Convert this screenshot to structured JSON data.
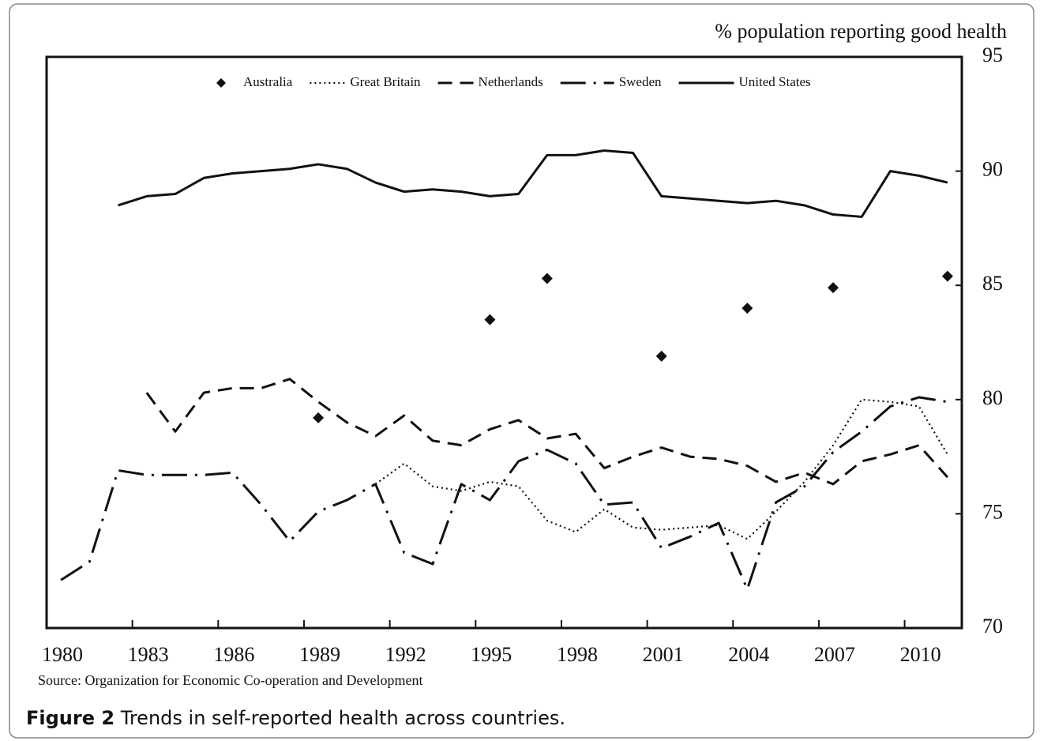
{
  "chart_data": {
    "type": "line",
    "y_label": "% population reporting good health",
    "source": "Source: Organization for Economic Co-operation and Development",
    "figure_label": "Figure 2",
    "caption": "Trends in self-reported health across countries.",
    "xlim": [
      1980,
      2012
    ],
    "xticks": [
      1980,
      1983,
      1986,
      1989,
      1992,
      1995,
      1998,
      2001,
      2004,
      2007,
      2010
    ],
    "ylim": [
      70,
      95
    ],
    "yticks": [
      70,
      75,
      80,
      85,
      90,
      95
    ],
    "y_axis_side": "right",
    "grid": false,
    "legend": "top",
    "series": [
      {
        "name": "Australia",
        "color": "#111111",
        "style": "markers",
        "x": [
          1989.5,
          1995.5,
          1997.5,
          2001.5,
          2004.5,
          2007.5,
          2011.5
        ],
        "values": [
          79.2,
          83.5,
          85.3,
          81.9,
          84.0,
          84.9,
          85.4
        ]
      },
      {
        "name": "Great Britain",
        "color": "#111111",
        "style": "dotted",
        "x": [
          1991.5,
          1992.5,
          1993.5,
          1994.5,
          1995.5,
          1996.5,
          1997.5,
          1998.5,
          1999.5,
          2000.5,
          2001.5,
          2002.5,
          2003.5,
          2004.5,
          2005.5,
          2006.5,
          2007.5,
          2008.5,
          2009.5,
          2010.5,
          2011.5
        ],
        "values": [
          76.3,
          77.2,
          76.2,
          76.0,
          76.4,
          76.2,
          74.7,
          74.2,
          75.2,
          74.4,
          74.3,
          74.4,
          74.5,
          73.9,
          75.1,
          76.4,
          78.0,
          80.0,
          79.9,
          79.7,
          77.6
        ]
      },
      {
        "name": "Netherlands",
        "color": "#111111",
        "style": "dashed",
        "x": [
          1983.5,
          1984.5,
          1985.5,
          1986.5,
          1987.5,
          1988.5,
          1989.5,
          1990.5,
          1991.5,
          1992.5,
          1993.5,
          1994.5,
          1995.5,
          1996.5,
          1997.5,
          1998.5,
          1999.5,
          2000.5,
          2001.5,
          2002.5,
          2003.5,
          2004.5,
          2005.5,
          2006.5,
          2007.5,
          2008.5,
          2009.5,
          2010.5,
          2011.5
        ],
        "values": [
          80.3,
          78.6,
          80.3,
          80.5,
          80.5,
          80.9,
          79.9,
          79.0,
          78.4,
          79.3,
          78.2,
          78.0,
          78.7,
          79.1,
          78.3,
          78.5,
          77.0,
          77.5,
          77.9,
          77.5,
          77.4,
          77.1,
          76.4,
          76.8,
          76.3,
          77.3,
          77.6,
          78.0,
          76.6
        ]
      },
      {
        "name": "Sweden",
        "color": "#111111",
        "style": "dashdot",
        "x": [
          1980.5,
          1981.5,
          1982.5,
          1983.5,
          1984.5,
          1985.5,
          1986.5,
          1987.5,
          1988.5,
          1989.5,
          1990.5,
          1991.5,
          1992.5,
          1993.5,
          1994.5,
          1995.5,
          1996.5,
          1997.5,
          1998.5,
          1999.5,
          2000.5,
          2001.5,
          2002.5,
          2003.5,
          2004.5,
          2005.5,
          2006.5,
          2007.5,
          2008.5,
          2009.5,
          2010.5,
          2011.5
        ],
        "values": [
          72.1,
          72.9,
          76.9,
          76.7,
          76.7,
          76.7,
          76.8,
          75.4,
          73.8,
          75.1,
          75.6,
          76.3,
          73.3,
          72.8,
          76.3,
          75.6,
          77.3,
          77.8,
          77.2,
          75.4,
          75.5,
          73.5,
          74.0,
          74.6,
          71.7,
          75.5,
          76.2,
          77.7,
          78.6,
          79.7,
          80.1,
          79.9
        ]
      },
      {
        "name": "United States",
        "color": "#111111",
        "style": "solid",
        "x": [
          1982.5,
          1983.5,
          1984.5,
          1985.5,
          1986.5,
          1987.5,
          1988.5,
          1989.5,
          1990.5,
          1991.5,
          1992.5,
          1993.5,
          1994.5,
          1995.5,
          1996.5,
          1997.5,
          1998.5,
          1999.5,
          2000.5,
          2001.5,
          2002.5,
          2003.5,
          2004.5,
          2005.5,
          2006.5,
          2007.5,
          2008.5,
          2009.5,
          2010.5,
          2011.5
        ],
        "values": [
          88.5,
          88.9,
          89.0,
          89.7,
          89.9,
          90.0,
          90.1,
          90.3,
          90.1,
          89.5,
          89.1,
          89.2,
          89.1,
          88.9,
          89.0,
          90.7,
          90.7,
          90.9,
          90.8,
          88.9,
          88.8,
          88.7,
          88.6,
          88.7,
          88.5,
          88.1,
          88.0,
          90.0,
          89.8,
          89.5
        ]
      }
    ]
  }
}
